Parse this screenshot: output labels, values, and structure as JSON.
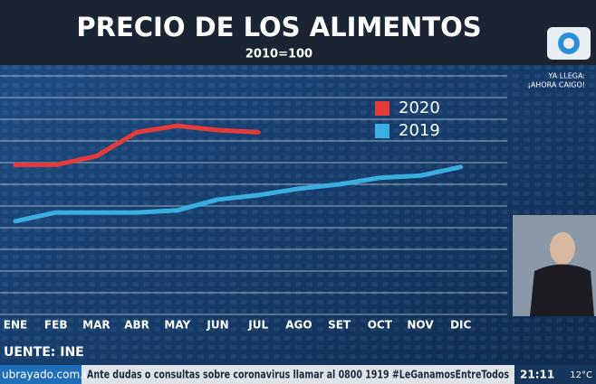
{
  "chart_data": {
    "type": "line",
    "title": "PRECIO DE LOS ALIMENTOS",
    "subtitle": "2010=100",
    "categories": [
      "ENE",
      "FEB",
      "MAR",
      "ABR",
      "MAY",
      "JUN",
      "JUL",
      "AGO",
      "SET",
      "OCT",
      "NOV",
      "DIC"
    ],
    "series": [
      {
        "name": "2020",
        "color": "#e53a3a",
        "values": [
          6.9,
          6.9,
          7.3,
          8.4,
          8.7,
          8.5,
          8.4,
          null,
          null,
          null,
          null,
          null
        ]
      },
      {
        "name": "2019",
        "color": "#3aaee0",
        "values": [
          4.3,
          4.7,
          4.7,
          4.7,
          4.8,
          5.3,
          5.5,
          5.8,
          6.0,
          6.3,
          6.4,
          6.8
        ]
      }
    ],
    "ylim": [
      0,
      11
    ],
    "yticks": [
      0,
      1,
      2,
      3,
      4,
      5,
      6,
      7,
      8,
      9,
      10,
      11
    ],
    "grid": true,
    "source": "UENTE: INE"
  },
  "overlay": {
    "promo": [
      "YA LLEGA:",
      "¡AHORA CAIGO!"
    ],
    "ticker": {
      "site": "ubrayado.com.uy",
      "message": "Ante dudas o consultas sobre coronavirus llamar al 0800 1919 #LeGanamosEntreTodos",
      "time": "21:11",
      "temp": "12°C"
    }
  }
}
